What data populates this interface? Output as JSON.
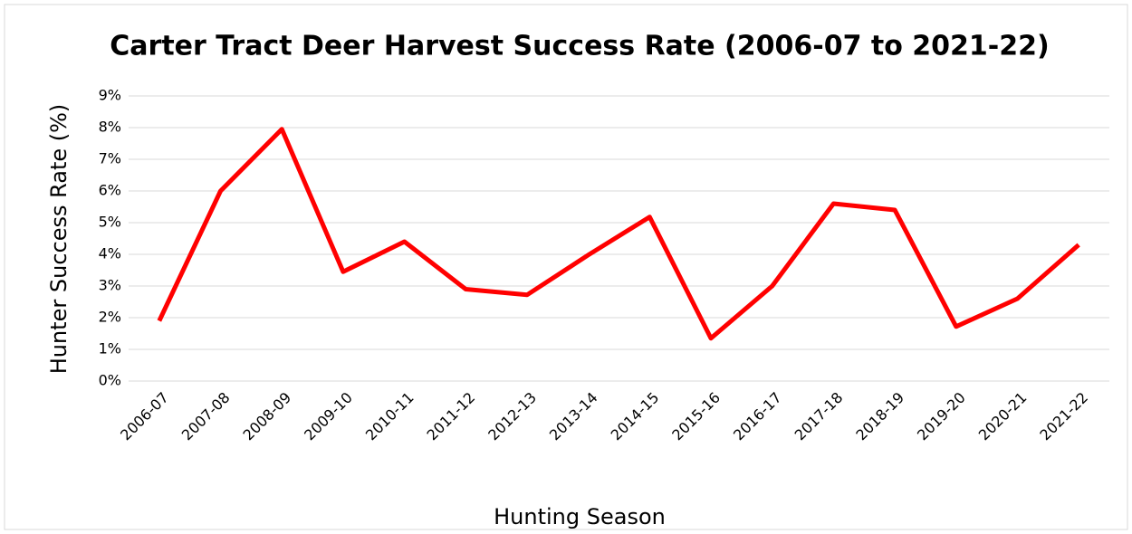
{
  "chart_data": {
    "type": "line",
    "title": "Carter Tract Deer Harvest Success Rate (2006-07 to 2021-22)",
    "x_label": "Hunting Season",
    "y_label": "Hunter Success Rate (%)",
    "categories": [
      "2006-07",
      "2007-08",
      "2008-09",
      "2009-10",
      "2010-11",
      "2011-12",
      "2012-13",
      "2013-14",
      "2014-15",
      "2015-16",
      "2016-17",
      "2017-18",
      "2018-19",
      "2019-20",
      "2020-21",
      "2021-22"
    ],
    "series": [
      {
        "name": "Hunter Success Rate",
        "color": "#ff0000",
        "values": [
          1.9,
          6.0,
          7.95,
          3.45,
          4.4,
          2.9,
          2.72,
          3.98,
          5.18,
          1.35,
          3.0,
          5.6,
          5.4,
          1.72,
          2.6,
          4.3
        ]
      }
    ],
    "ylim": [
      0,
      9
    ],
    "yticks": [
      {
        "value": 0,
        "label": "0%"
      },
      {
        "value": 1,
        "label": "1%"
      },
      {
        "value": 2,
        "label": "2%"
      },
      {
        "value": 3,
        "label": "3%"
      },
      {
        "value": 4,
        "label": "4%"
      },
      {
        "value": 5,
        "label": "5%"
      },
      {
        "value": 6,
        "label": "6%"
      },
      {
        "value": 7,
        "label": "7%"
      },
      {
        "value": 8,
        "label": "8%"
      },
      {
        "value": 9,
        "label": "9%"
      }
    ],
    "grid": true
  }
}
